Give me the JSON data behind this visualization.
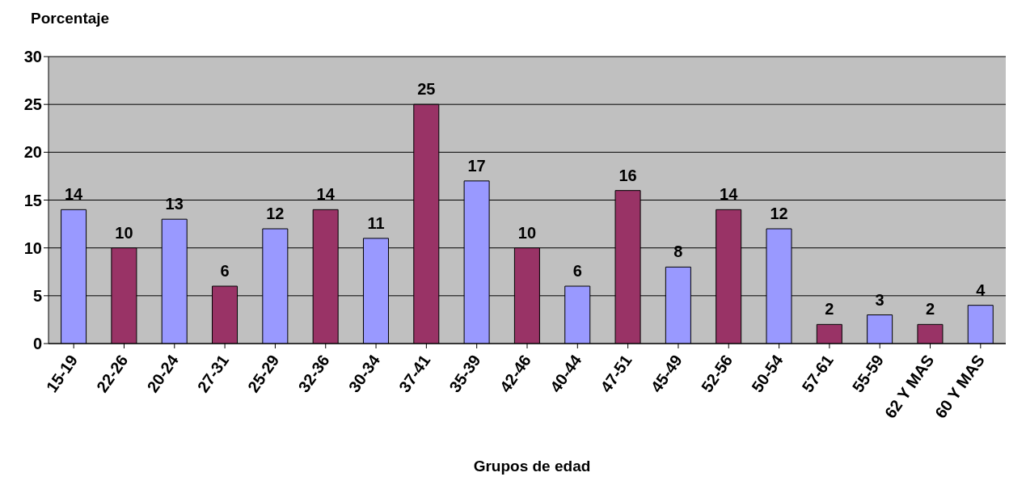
{
  "chart_data": {
    "type": "bar",
    "ylabel": "Porcentaje",
    "xlabel": "Grupos de edad",
    "categories": [
      "15-19",
      "22-26",
      "20-24",
      "27-31",
      "25-29",
      "32-36",
      "30-34",
      "37-41",
      "35-39",
      "42-46",
      "40-44",
      "47-51",
      "45-49",
      "52-56",
      "50-54",
      "57-61",
      "55-59",
      "62 Y MAS",
      "60 Y MAS"
    ],
    "values": [
      14,
      10,
      13,
      6,
      12,
      14,
      11,
      25,
      17,
      10,
      6,
      16,
      8,
      14,
      12,
      2,
      3,
      2,
      4
    ],
    "colors": [
      "#9999ff",
      "#993366",
      "#9999ff",
      "#993366",
      "#9999ff",
      "#993366",
      "#9999ff",
      "#993366",
      "#9999ff",
      "#993366",
      "#9999ff",
      "#993366",
      "#9999ff",
      "#993366",
      "#9999ff",
      "#993366",
      "#9999ff",
      "#993366",
      "#9999ff"
    ],
    "ylim": [
      0,
      30
    ],
    "yticks": [
      0,
      5,
      10,
      15,
      20,
      25,
      30
    ],
    "grid": "y",
    "data_labels": true
  }
}
